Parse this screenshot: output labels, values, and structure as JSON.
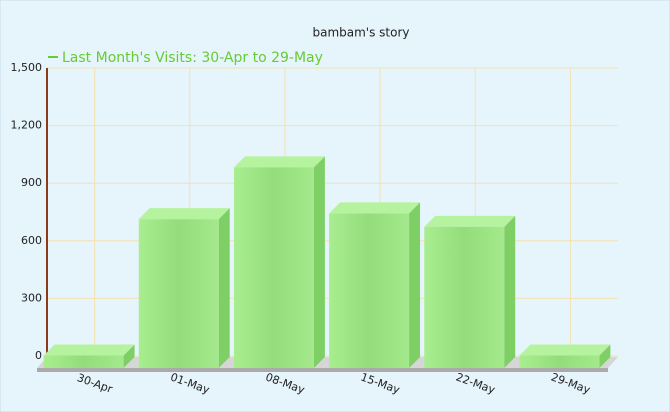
{
  "chart_data": {
    "type": "bar3d",
    "title": "bambam's story",
    "legend": "Last Month's Visits: 30-Apr to 29-May",
    "categories": [
      "30-Apr",
      "01-May",
      "08-May",
      "15-May",
      "22-May",
      "29-May"
    ],
    "values": [
      60,
      770,
      1040,
      800,
      730,
      60
    ],
    "color": "#9be585",
    "ylim": [
      0,
      1500
    ],
    "yticks": [
      0,
      300,
      600,
      900,
      {
        "value": 1200,
        "label": "1,200"
      },
      {
        "value": 1500,
        "label": "1,500"
      }
    ],
    "grid": true
  }
}
